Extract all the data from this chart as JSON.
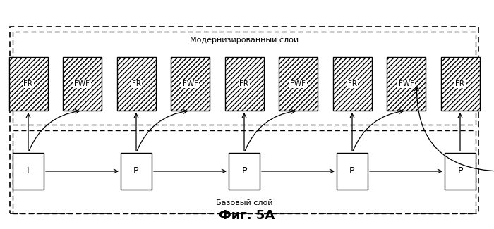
{
  "title": "Фиг. 5А",
  "enhanced_label": "Модернизированный слой",
  "base_label": "Базовый слой",
  "base_frames": [
    "I",
    "P",
    "P",
    "P",
    "P"
  ],
  "enhanced_frames": [
    "FR",
    "FWF",
    "FR",
    "FWF",
    "FR",
    "FWF",
    "FR",
    "FWF",
    "FR"
  ],
  "bg_color": "#ffffff",
  "fig_width": 7.0,
  "fig_height": 3.25
}
